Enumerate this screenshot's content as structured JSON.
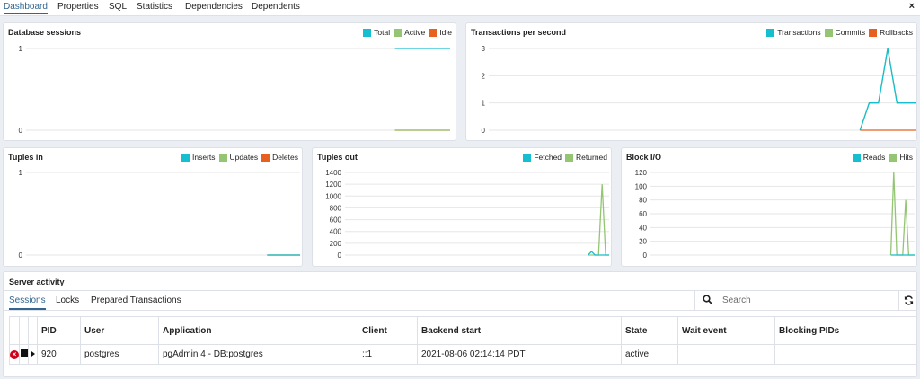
{
  "tabs": [
    "Dashboard",
    "Properties",
    "SQL",
    "Statistics",
    "Dependencies",
    "Dependents"
  ],
  "close_symbol": "×",
  "colors": {
    "cyan": "#17becf",
    "green": "#93c572",
    "orange": "#e8601f",
    "accent": "#326690"
  },
  "chart_data": [
    {
      "type": "line",
      "title": "Database sessions",
      "yticks": [
        0,
        1
      ],
      "ylim": [
        0,
        1
      ],
      "legend_position": "top-right",
      "series": [
        {
          "name": "Total",
          "color": "#17becf",
          "values": [
            1,
            1,
            1,
            1
          ]
        },
        {
          "name": "Active",
          "color": "#93c572",
          "values": [
            0,
            0,
            0,
            0
          ]
        },
        {
          "name": "Idle",
          "color": "#e8601f",
          "values": [
            0,
            0,
            0,
            0
          ]
        }
      ]
    },
    {
      "type": "line",
      "title": "Transactions per second",
      "yticks": [
        0,
        1,
        2,
        3
      ],
      "ylim": [
        0,
        3
      ],
      "legend_position": "top-right",
      "series": [
        {
          "name": "Transactions",
          "color": "#17becf",
          "values": [
            0,
            1,
            1,
            3,
            1,
            1,
            1
          ]
        },
        {
          "name": "Commits",
          "color": "#93c572",
          "values": [
            0,
            1,
            1,
            3,
            1,
            1,
            1
          ]
        },
        {
          "name": "Rollbacks",
          "color": "#e8601f",
          "values": [
            0,
            0,
            0,
            0,
            0,
            0,
            0
          ]
        }
      ]
    },
    {
      "type": "line",
      "title": "Tuples in",
      "yticks": [
        0,
        1
      ],
      "ylim": [
        0,
        1
      ],
      "legend_position": "top-right",
      "series": [
        {
          "name": "Inserts",
          "color": "#17becf",
          "values": [
            0,
            0,
            0,
            0
          ]
        },
        {
          "name": "Updates",
          "color": "#93c572",
          "values": [
            0,
            0,
            0,
            0
          ]
        },
        {
          "name": "Deletes",
          "color": "#e8601f",
          "values": [
            0,
            0,
            0,
            0
          ]
        }
      ]
    },
    {
      "type": "line",
      "title": "Tuples out",
      "yticks": [
        0,
        200,
        400,
        600,
        800,
        1000,
        1200,
        1400
      ],
      "ylim": [
        0,
        1400
      ],
      "legend_position": "top-right",
      "series": [
        {
          "name": "Fetched",
          "color": "#17becf",
          "values": [
            0,
            60,
            0,
            0,
            0,
            0,
            0
          ]
        },
        {
          "name": "Returned",
          "color": "#93c572",
          "values": [
            0,
            0,
            0,
            0,
            1200,
            0,
            0
          ]
        }
      ]
    },
    {
      "type": "line",
      "title": "Block I/O",
      "yticks": [
        0,
        20,
        40,
        60,
        80,
        100,
        120
      ],
      "ylim": [
        0,
        120
      ],
      "legend_position": "top-right",
      "series": [
        {
          "name": "Reads",
          "color": "#17becf",
          "values": [
            0,
            0,
            0,
            0,
            0,
            0,
            0,
            0,
            0
          ]
        },
        {
          "name": "Hits",
          "color": "#93c572",
          "values": [
            0,
            120,
            0,
            0,
            0,
            80,
            0,
            0,
            0
          ]
        }
      ]
    }
  ],
  "server_activity": {
    "title": "Server activity",
    "subtabs": [
      "Sessions",
      "Locks",
      "Prepared Transactions"
    ],
    "search_placeholder": "Search",
    "columns": [
      "PID",
      "User",
      "Application",
      "Client",
      "Backend start",
      "State",
      "Wait event",
      "Blocking PIDs"
    ],
    "rows": [
      {
        "pid": "920",
        "user": "postgres",
        "application": "pgAdmin 4 - DB:postgres",
        "client": "::1",
        "backend_start": "2021-08-06 02:14:14 PDT",
        "state": "active",
        "wait_event": "",
        "blocking_pids": ""
      }
    ]
  }
}
